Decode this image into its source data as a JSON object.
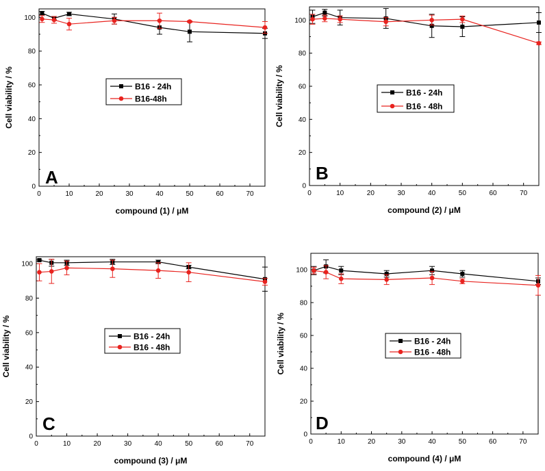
{
  "chart_data": [
    {
      "type": "line",
      "panel": "A",
      "xlabel": "compound (1)  /  μM",
      "ylabel": "Cell viability  /  %",
      "xlim": [
        0,
        75
      ],
      "ylim": [
        0,
        105
      ],
      "xticks": [
        0,
        10,
        20,
        30,
        40,
        50,
        60,
        70
      ],
      "yticks": [
        0,
        20,
        40,
        60,
        80,
        100
      ],
      "x": [
        1,
        5,
        10,
        25,
        40,
        50,
        75
      ],
      "series": [
        {
          "name": "B16 - 24h",
          "color": "#000000",
          "marker": "square",
          "values": [
            102.5,
            99.5,
            102,
            99,
            94,
            91.5,
            90.5
          ],
          "errors": [
            1,
            1,
            1,
            3,
            4,
            6,
            3
          ]
        },
        {
          "name": "B16-48h",
          "color": "#e8231f",
          "marker": "circle",
          "values": [
            99,
            98.5,
            96,
            98,
            98,
            97.5,
            94
          ],
          "errors": [
            2,
            2,
            3.5,
            2,
            4.5,
            0.5,
            3.5
          ]
        }
      ]
    },
    {
      "type": "line",
      "panel": "B",
      "xlabel": "compound (2)  /  μM",
      "ylabel": "Cell viability  /  %",
      "xlim": [
        0,
        75
      ],
      "ylim": [
        0,
        108
      ],
      "xticks": [
        0,
        10,
        20,
        30,
        40,
        50,
        60,
        70
      ],
      "yticks": [
        0,
        20,
        40,
        60,
        80,
        100
      ],
      "x": [
        1,
        5,
        10,
        25,
        40,
        50,
        75
      ],
      "series": [
        {
          "name": "B16 - 24h",
          "color": "#000000",
          "marker": "square",
          "values": [
            102,
            104.5,
            101.5,
            101,
            96.5,
            96,
            98.5
          ],
          "errors": [
            4,
            2,
            4.5,
            6,
            7,
            6,
            6
          ]
        },
        {
          "name": "B16 - 48h",
          "color": "#e8231f",
          "marker": "circle",
          "values": [
            100.5,
            101,
            100.5,
            99,
            100,
            100.5,
            86
          ],
          "errors": [
            3,
            2,
            2,
            2.5,
            3,
            2,
            0.8
          ]
        }
      ]
    },
    {
      "type": "line",
      "panel": "C",
      "xlabel": "compound (3)  /  μM",
      "ylabel": "Cell viability  /  %",
      "xlim": [
        0,
        75
      ],
      "ylim": [
        0,
        104
      ],
      "xticks": [
        0,
        10,
        20,
        30,
        40,
        50,
        60,
        70
      ],
      "yticks": [
        0,
        20,
        40,
        60,
        80,
        100
      ],
      "x": [
        1,
        5,
        10,
        25,
        40,
        50,
        75
      ],
      "series": [
        {
          "name": "B16 - 24h",
          "color": "#000000",
          "marker": "square",
          "values": [
            102,
            100.5,
            100.5,
            101,
            101,
            98,
            91
          ],
          "errors": [
            0.5,
            2,
            1.5,
            1.5,
            1,
            1,
            7
          ]
        },
        {
          "name": "B16 - 48h",
          "color": "#e8231f",
          "marker": "circle",
          "values": [
            95,
            95.5,
            97.5,
            97,
            96,
            95,
            89.5
          ],
          "errors": [
            5,
            7,
            4,
            5,
            4.5,
            5.5,
            2
          ]
        }
      ]
    },
    {
      "type": "line",
      "panel": "D",
      "xlabel": "compound (4)  /  μM",
      "ylabel": "Cell viability  /  %",
      "xlim": [
        0,
        75
      ],
      "ylim": [
        0,
        110
      ],
      "xticks": [
        0,
        10,
        20,
        30,
        40,
        50,
        60,
        70
      ],
      "yticks": [
        0,
        20,
        40,
        60,
        80,
        100
      ],
      "x": [
        1,
        5,
        10,
        25,
        40,
        50,
        75
      ],
      "series": [
        {
          "name": "B16 - 24h",
          "color": "#000000",
          "marker": "square",
          "values": [
            99.5,
            102,
            99.5,
            97.5,
            99.5,
            97.5,
            93
          ],
          "errors": [
            2.5,
            4,
            2.5,
            2,
            2.5,
            2,
            2
          ]
        },
        {
          "name": "B16 - 48h",
          "color": "#e8231f",
          "marker": "circle",
          "values": [
            99.5,
            98.5,
            94.5,
            94,
            95,
            93,
            90.5
          ],
          "errors": [
            2,
            4,
            3,
            3,
            4,
            1.5,
            6
          ]
        }
      ]
    }
  ]
}
